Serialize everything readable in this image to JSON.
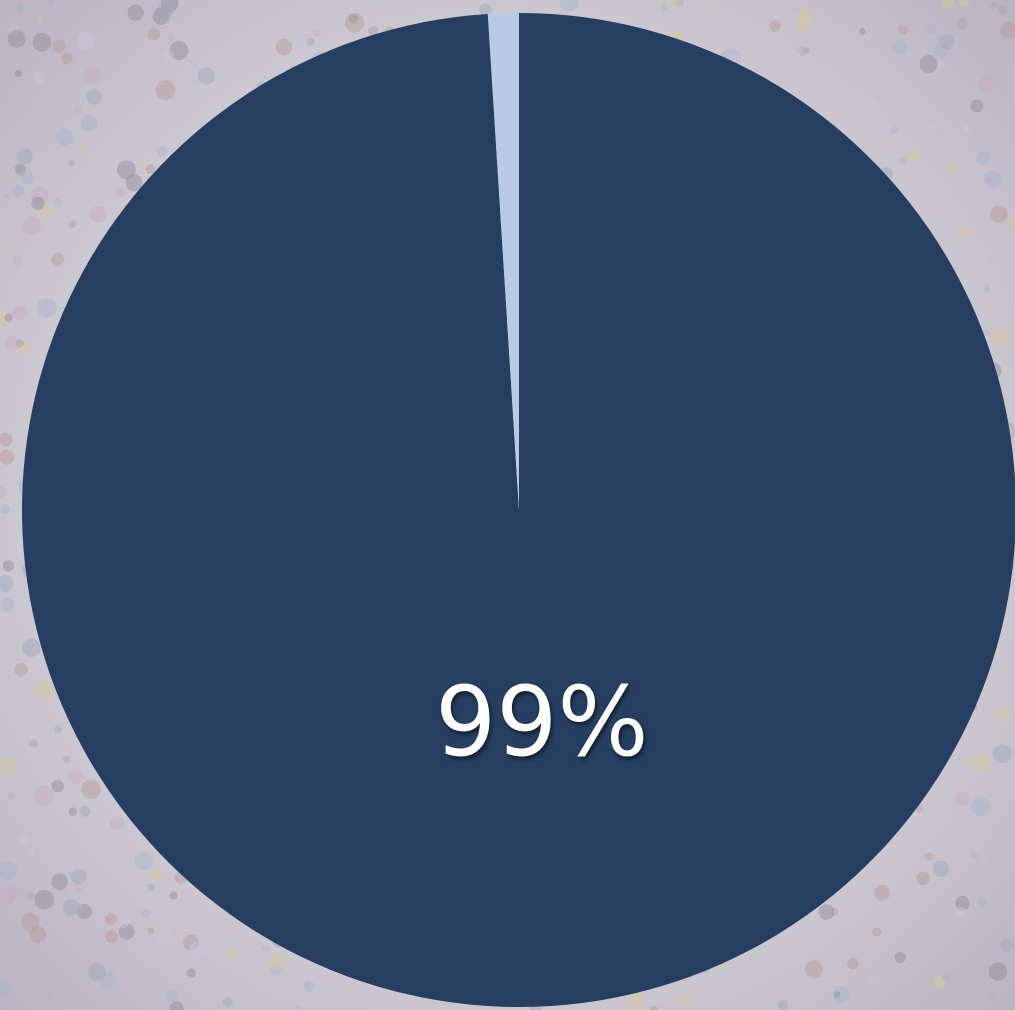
{
  "chart_data": {
    "type": "pie",
    "values": [
      99,
      1
    ],
    "value_labels": [
      "99%",
      null
    ],
    "colors": [
      "#263f61",
      "#b7cce4"
    ]
  }
}
